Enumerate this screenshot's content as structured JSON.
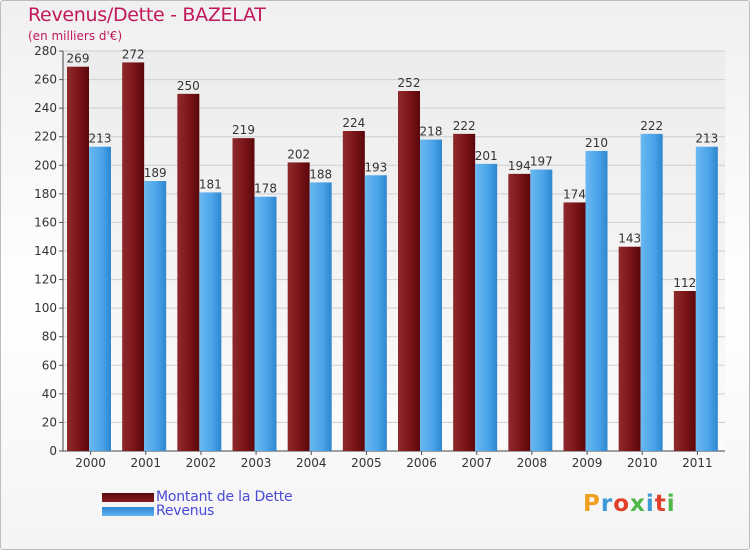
{
  "chart_data": {
    "type": "bar",
    "title": "Revenus/Dette - BAZELAT",
    "subtitle": "(en milliers d'€)",
    "categories": [
      "2000",
      "2001",
      "2002",
      "2003",
      "2004",
      "2005",
      "2006",
      "2007",
      "2008",
      "2009",
      "2010",
      "2011"
    ],
    "series": [
      {
        "name": "Montant de la Dette",
        "values": [
          269,
          272,
          250,
          219,
          202,
          224,
          252,
          222,
          194,
          174,
          143,
          112
        ],
        "color": "#7a1418"
      },
      {
        "name": "Revenus",
        "values": [
          213,
          189,
          181,
          178,
          188,
          193,
          218,
          201,
          197,
          210,
          222,
          213
        ],
        "color": "#4aa3e8"
      }
    ],
    "ylim": [
      0,
      280
    ],
    "yticks": [
      0,
      20,
      40,
      60,
      80,
      100,
      120,
      140,
      160,
      180,
      200,
      220,
      240,
      260,
      280
    ],
    "grid": true,
    "legend_position": "bottom-left"
  },
  "legend": {
    "debt_label": "Montant de la Dette",
    "revenue_label": "Revenus"
  },
  "branding": {
    "logo_text": "Proxiti",
    "logo_colors": [
      "#f0a01e",
      "#3d9ad6",
      "#e0402a",
      "#4fb848",
      "#3d9ad6",
      "#e0402a",
      "#4fb848"
    ]
  }
}
